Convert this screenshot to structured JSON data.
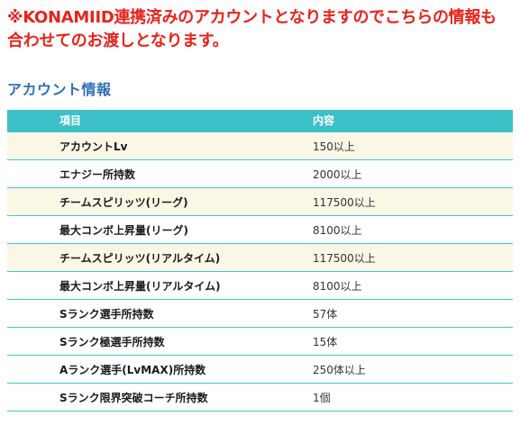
{
  "notice": {
    "line1": "※KONAMIID連携済みのアカウントとなりますのでこちらの情報も",
    "line2": "合わせてのお渡しとなります。"
  },
  "section_title": "アカウント情報",
  "table": {
    "headers": [
      "項目",
      "内容"
    ],
    "rows": [
      {
        "item": "アカウントLv",
        "value": "150以上"
      },
      {
        "item": "エナジー所持数",
        "value": "2000以上"
      },
      {
        "item": "チームスピリッツ(リーグ)",
        "value": "117500以上"
      },
      {
        "item": "最大コンボ上昇量(リーグ)",
        "value": "8100以上"
      },
      {
        "item": "チームスピリッツ(リアルタイム)",
        "value": "117500以上"
      },
      {
        "item": "最大コンボ上昇量(リアルタイム)",
        "value": "8100以上"
      },
      {
        "item": "Sランク選手所持数",
        "value": "57体"
      },
      {
        "item": "Sランク極選手所持数",
        "value": "15体"
      },
      {
        "item": "Aランク選手(LvMAX)所持数",
        "value": "250体以上"
      },
      {
        "item": "Sランク限界突破コーチ所持数",
        "value": "1個"
      }
    ]
  },
  "colors": {
    "notice_red": "#e8231a",
    "title_blue": "#2d6fb8",
    "header_teal": "#3cc0c8",
    "row_alt_cream": "#fbf7e6"
  }
}
